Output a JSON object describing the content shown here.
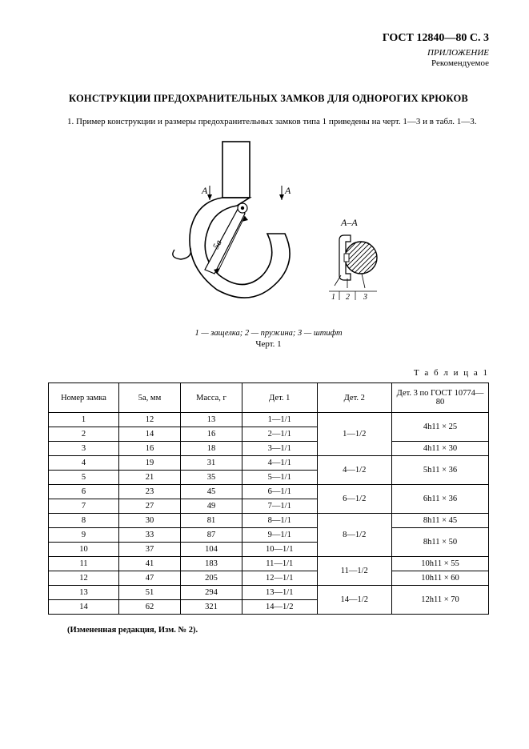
{
  "header": {
    "gost": "ГОСТ 12840—80 C. 3",
    "annex_line1": "ПРИЛОЖЕНИЕ",
    "annex_line2": "Рекомендуемое"
  },
  "title": "КОНСТРУКЦИИ ПРЕДОХРАНИТЕЛЬНЫХ ЗАМКОВ ДЛЯ ОДНОРОГИХ КРЮКОВ",
  "para1": "1. Пример конструкции и размеры предохранительных замков типа 1 приведены на черт. 1—3 и в табл. 1—3.",
  "figure": {
    "dim_label": "5a",
    "A_left": "A",
    "A_right": "A",
    "section_label": "A–A",
    "callout1": "1",
    "callout2": "2",
    "callout3": "3",
    "legend": "1 — защелка; 2 — пружина; 3 — штифт",
    "label": "Черт. 1"
  },
  "table": {
    "label": "Т а б л и ц а   1",
    "columns": {
      "c1": "Номер замка",
      "c2": "5a, мм",
      "c3": "Масса, г",
      "c4": "Дет. 1",
      "c5": "Дет. 2",
      "c6": "Дет. 3 по ГОСТ 10774—80"
    },
    "groups": [
      {
        "rows": [
          {
            "n": "1",
            "a": "12",
            "m": "13",
            "d1": "1—1/1"
          },
          {
            "n": "2",
            "a": "14",
            "m": "16",
            "d1": "2—1/1"
          },
          {
            "n": "3",
            "a": "16",
            "m": "18",
            "d1": "3—1/1"
          }
        ],
        "d2": "1—1/2",
        "d3": [
          "4h11 × 25",
          "",
          "4h11 × 30"
        ]
      },
      {
        "rows": [
          {
            "n": "4",
            "a": "19",
            "m": "31",
            "d1": "4—1/1"
          },
          {
            "n": "5",
            "a": "21",
            "m": "35",
            "d1": "5—1/1"
          }
        ],
        "d2": "4—1/2",
        "d3": [
          "5h11 × 36"
        ]
      },
      {
        "rows": [
          {
            "n": "6",
            "a": "23",
            "m": "45",
            "d1": "6—1/1"
          },
          {
            "n": "7",
            "a": "27",
            "m": "49",
            "d1": "7—1/1"
          }
        ],
        "d2": "6—1/2",
        "d3": [
          "6h11 × 36"
        ]
      },
      {
        "rows": [
          {
            "n": "8",
            "a": "30",
            "m": "81",
            "d1": "8—1/1"
          },
          {
            "n": "9",
            "a": "33",
            "m": "87",
            "d1": "9—1/1"
          },
          {
            "n": "10",
            "a": "37",
            "m": "104",
            "d1": "10—1/1"
          }
        ],
        "d2": "8—1/2",
        "d3": [
          "8h11 × 45",
          "8h11 × 50"
        ]
      },
      {
        "rows": [
          {
            "n": "11",
            "a": "41",
            "m": "183",
            "d1": "11—1/1"
          },
          {
            "n": "12",
            "a": "47",
            "m": "205",
            "d1": "12—1/1"
          }
        ],
        "d2": "11—1/2",
        "d3": [
          "10h11 × 55",
          "10h11 × 60"
        ]
      },
      {
        "rows": [
          {
            "n": "13",
            "a": "51",
            "m": "294",
            "d1": "13—1/1"
          },
          {
            "n": "14",
            "a": "62",
            "m": "321",
            "d1": "14—1/2"
          }
        ],
        "d2": "14—1/2",
        "d3": [
          "12h11 × 70"
        ]
      }
    ]
  },
  "note": "(Измененная редакция, Изм. № 2)."
}
